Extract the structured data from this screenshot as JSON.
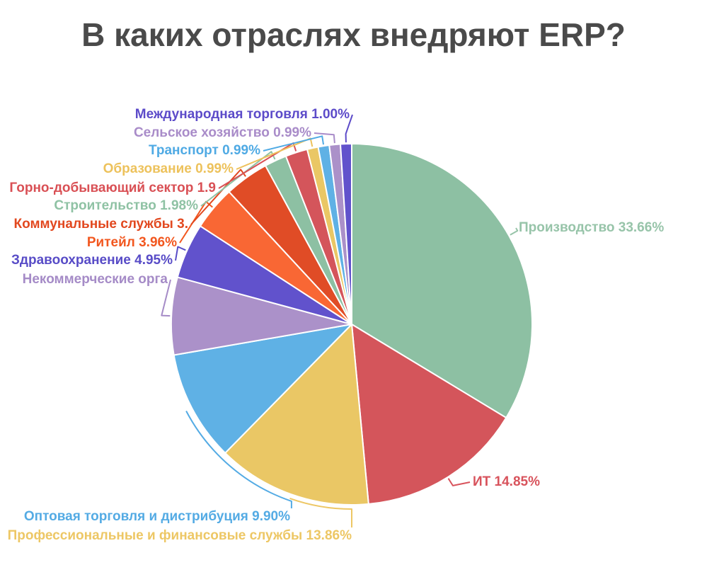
{
  "chart_data": {
    "type": "pie",
    "title": "В каких отраслях внедряют ERP?",
    "legend_position": "none",
    "label_style": "outside callout labels colored to match slices",
    "start_angle": "12 o'clock, clockwise",
    "background_color": "#ffffff",
    "title_color": "#4a4a4a",
    "slices": [
      {
        "name": "Производство",
        "value": 33.66,
        "label_text": "Производство 33.66%",
        "color": "#8dc0a3",
        "label_color": "#97c4a9"
      },
      {
        "name": "ИТ",
        "value": 14.85,
        "label_text": "ИТ 14.85%",
        "color": "#d4555b",
        "label_color": "#d8535c"
      },
      {
        "name": "Профессиональные и финансовые службы",
        "value": 13.86,
        "label_text": "Профессиональные и финансовые службы 13.86%",
        "color": "#eac765",
        "label_color": "#edc765"
      },
      {
        "name": "Оптовая торговля и дистрибуция",
        "value": 9.9,
        "label_text": "Оптовая торговля и дистрибуция 9.90%",
        "color": "#5fb1e5",
        "label_color": "#54abe4"
      },
      {
        "name": "Некоммерческие организации",
        "value": 6.93,
        "label_text": "Некоммерческие орга",
        "label_truncated": true,
        "color": "#ab91c9",
        "label_color": "#a58bc7"
      },
      {
        "name": "Здравоохранение",
        "value": 4.95,
        "label_text": "Здравоохранение 4.95%",
        "color": "#6152cc",
        "label_color": "#584cc7"
      },
      {
        "name": "Ритейл",
        "value": 3.96,
        "label_text": "Ритейл 3.96%",
        "color": "#f96734",
        "label_color": "#f2571f"
      },
      {
        "name": "Коммунальные службы",
        "value": 3.96,
        "label_text": "Коммунальные службы 3.",
        "label_truncated": true,
        "color": "#e04c26",
        "label_color": "#e2481f"
      },
      {
        "name": "Строительство",
        "value": 1.98,
        "label_text": "Строительство 1.98%",
        "color": "#8dc0a3",
        "label_color": "#8fc2a4"
      },
      {
        "name": "Горно-добывающий сектор",
        "value": 1.98,
        "label_text": "Горно-добывающий сектор 1.9",
        "label_truncated": true,
        "color": "#d4555b",
        "label_color": "#d95055"
      },
      {
        "name": "Образование",
        "value": 0.99,
        "label_text": "Образование 0.99%",
        "color": "#eac765",
        "label_color": "#edc25c"
      },
      {
        "name": "Транспорт",
        "value": 0.99,
        "label_text": "Транспорт 0.99%",
        "color": "#5fb1e5",
        "label_color": "#4faae4"
      },
      {
        "name": "Сельское хозяйство",
        "value": 0.99,
        "label_text": "Сельское хозяйство 0.99%",
        "color": "#ab91c9",
        "label_color": "#a98cc9"
      },
      {
        "name": "Международная торговля",
        "value": 1.0,
        "label_text": "Международная торговля 1.00%",
        "color": "#6152cc",
        "label_color": "#5c4bc9"
      }
    ]
  }
}
